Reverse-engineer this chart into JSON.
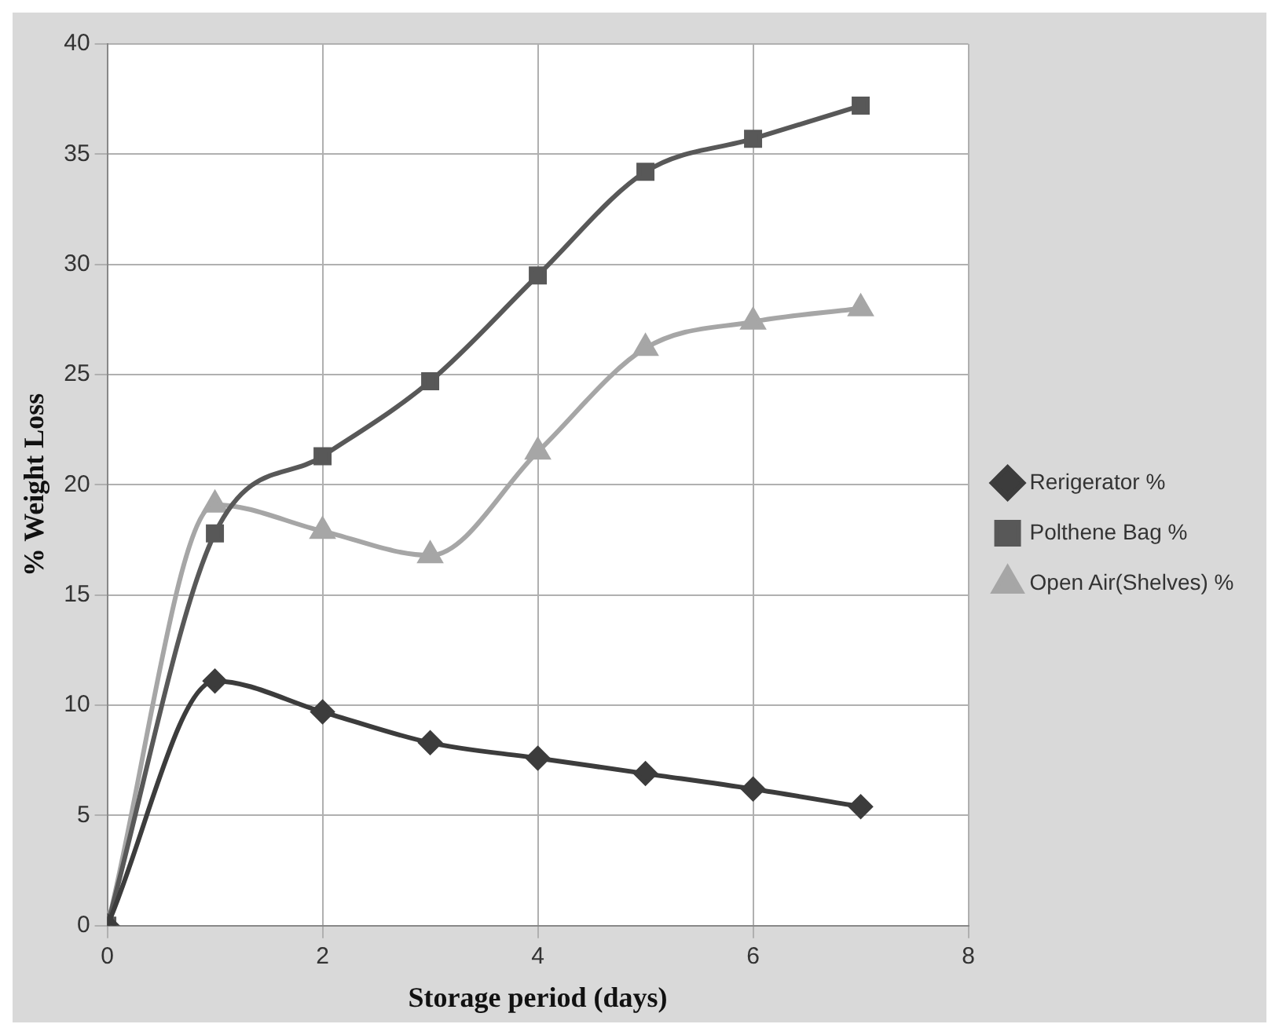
{
  "chart_data": {
    "type": "line",
    "xlabel": "Storage period (days)",
    "ylabel": "% Weight Loss",
    "x": [
      0,
      1,
      2,
      3,
      4,
      5,
      6,
      7
    ],
    "series": [
      {
        "name": "Rerigerator %",
        "color": "#3c3c3c",
        "marker": "diamond",
        "values": [
          0,
          11.1,
          9.7,
          8.3,
          7.6,
          6.9,
          6.2,
          5.4
        ]
      },
      {
        "name": "Polthene Bag %",
        "color": "#585858",
        "marker": "square",
        "values": [
          0,
          17.8,
          21.3,
          24.7,
          29.5,
          34.2,
          35.7,
          37.2
        ]
      },
      {
        "name": "Open Air(Shelves) %",
        "color": "#a6a6a6",
        "marker": "triangle",
        "values": [
          0,
          19.1,
          17.9,
          16.8,
          21.5,
          26.2,
          27.4,
          28.0
        ]
      }
    ],
    "xlim": [
      0,
      8
    ],
    "xticks": [
      0,
      2,
      4,
      6,
      8
    ],
    "ylim": [
      0,
      40
    ],
    "yticks": [
      0,
      5,
      10,
      15,
      20,
      25,
      30,
      35,
      40
    ],
    "grid": true,
    "legend": "right",
    "line_style": "solid"
  }
}
